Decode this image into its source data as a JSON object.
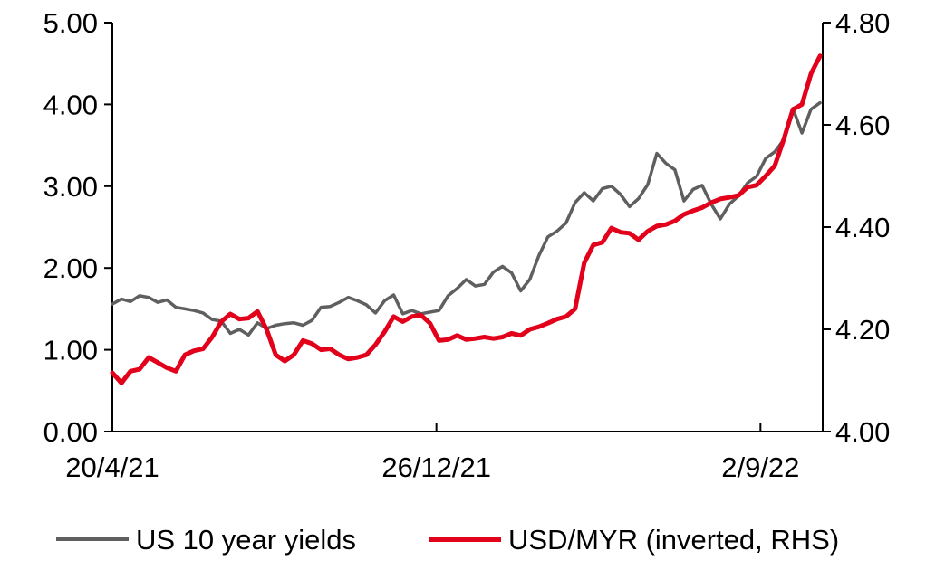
{
  "chart_data": {
    "type": "line",
    "title": "",
    "xlabel": "",
    "ylabel": "",
    "x_ticks": [
      {
        "label": "20/4/21",
        "date": "2021-04-20"
      },
      {
        "label": "26/12/21",
        "date": "2021-12-26"
      },
      {
        "label": "2/9/22",
        "date": "2022-09-02"
      }
    ],
    "x_range": [
      "2021-04-20",
      "2022-10-20"
    ],
    "y_left": {
      "min": 0,
      "max": 5,
      "ticks": [
        "0.00",
        "1.00",
        "2.00",
        "3.00",
        "4.00",
        "5.00"
      ]
    },
    "y_right": {
      "min": 4.0,
      "max": 4.8,
      "inverted": true,
      "ticks": [
        "4.00",
        "4.20",
        "4.40",
        "4.60",
        "4.80"
      ]
    },
    "grid": false,
    "legend_position": "bottom",
    "series": [
      {
        "name": "US 10 year yields",
        "axis": "left",
        "color": "#5f5f5f",
        "points": [
          [
            "2021-04-20",
            1.56
          ],
          [
            "2021-04-27",
            1.62
          ],
          [
            "2021-05-04",
            1.59
          ],
          [
            "2021-05-11",
            1.66
          ],
          [
            "2021-05-18",
            1.64
          ],
          [
            "2021-05-25",
            1.58
          ],
          [
            "2021-06-01",
            1.61
          ],
          [
            "2021-06-08",
            1.52
          ],
          [
            "2021-06-15",
            1.5
          ],
          [
            "2021-06-22",
            1.48
          ],
          [
            "2021-06-29",
            1.45
          ],
          [
            "2021-07-06",
            1.37
          ],
          [
            "2021-07-13",
            1.35
          ],
          [
            "2021-07-20",
            1.2
          ],
          [
            "2021-07-27",
            1.25
          ],
          [
            "2021-08-03",
            1.18
          ],
          [
            "2021-08-10",
            1.33
          ],
          [
            "2021-08-17",
            1.26
          ],
          [
            "2021-08-24",
            1.3
          ],
          [
            "2021-08-31",
            1.32
          ],
          [
            "2021-09-07",
            1.33
          ],
          [
            "2021-09-14",
            1.3
          ],
          [
            "2021-09-21",
            1.36
          ],
          [
            "2021-09-28",
            1.52
          ],
          [
            "2021-10-05",
            1.53
          ],
          [
            "2021-10-12",
            1.58
          ],
          [
            "2021-10-19",
            1.64
          ],
          [
            "2021-10-26",
            1.6
          ],
          [
            "2021-11-02",
            1.55
          ],
          [
            "2021-11-09",
            1.45
          ],
          [
            "2021-11-16",
            1.6
          ],
          [
            "2021-11-23",
            1.67
          ],
          [
            "2021-11-30",
            1.44
          ],
          [
            "2021-12-07",
            1.48
          ],
          [
            "2021-12-14",
            1.44
          ],
          [
            "2021-12-21",
            1.46
          ],
          [
            "2021-12-28",
            1.48
          ],
          [
            "2022-01-04",
            1.66
          ],
          [
            "2022-01-11",
            1.75
          ],
          [
            "2022-01-18",
            1.86
          ],
          [
            "2022-01-25",
            1.78
          ],
          [
            "2022-02-01",
            1.8
          ],
          [
            "2022-02-08",
            1.95
          ],
          [
            "2022-02-15",
            2.02
          ],
          [
            "2022-02-22",
            1.94
          ],
          [
            "2022-03-01",
            1.72
          ],
          [
            "2022-03-08",
            1.86
          ],
          [
            "2022-03-15",
            2.15
          ],
          [
            "2022-03-22",
            2.38
          ],
          [
            "2022-03-29",
            2.45
          ],
          [
            "2022-04-05",
            2.55
          ],
          [
            "2022-04-12",
            2.8
          ],
          [
            "2022-04-19",
            2.92
          ],
          [
            "2022-04-26",
            2.82
          ],
          [
            "2022-05-03",
            2.97
          ],
          [
            "2022-05-10",
            3.0
          ],
          [
            "2022-05-17",
            2.9
          ],
          [
            "2022-05-24",
            2.75
          ],
          [
            "2022-05-31",
            2.85
          ],
          [
            "2022-06-07",
            3.02
          ],
          [
            "2022-06-14",
            3.4
          ],
          [
            "2022-06-21",
            3.28
          ],
          [
            "2022-06-28",
            3.2
          ],
          [
            "2022-07-05",
            2.82
          ],
          [
            "2022-07-12",
            2.96
          ],
          [
            "2022-07-19",
            3.01
          ],
          [
            "2022-07-26",
            2.78
          ],
          [
            "2022-08-02",
            2.6
          ],
          [
            "2022-08-09",
            2.78
          ],
          [
            "2022-08-16",
            2.88
          ],
          [
            "2022-08-23",
            3.04
          ],
          [
            "2022-08-30",
            3.12
          ],
          [
            "2022-09-06",
            3.34
          ],
          [
            "2022-09-13",
            3.42
          ],
          [
            "2022-09-20",
            3.57
          ],
          [
            "2022-09-27",
            3.95
          ],
          [
            "2022-10-04",
            3.65
          ],
          [
            "2022-10-11",
            3.94
          ],
          [
            "2022-10-18",
            4.02
          ]
        ]
      },
      {
        "name": "USD/MYR (inverted, RHS)",
        "axis": "right",
        "color": "#e2001a",
        "points": [
          [
            "2021-04-20",
            4.115
          ],
          [
            "2021-04-27",
            4.095
          ],
          [
            "2021-05-04",
            4.118
          ],
          [
            "2021-05-11",
            4.122
          ],
          [
            "2021-05-18",
            4.145
          ],
          [
            "2021-05-25",
            4.135
          ],
          [
            "2021-06-01",
            4.125
          ],
          [
            "2021-06-08",
            4.118
          ],
          [
            "2021-06-15",
            4.15
          ],
          [
            "2021-06-22",
            4.158
          ],
          [
            "2021-06-29",
            4.162
          ],
          [
            "2021-07-06",
            4.185
          ],
          [
            "2021-07-13",
            4.215
          ],
          [
            "2021-07-20",
            4.23
          ],
          [
            "2021-07-27",
            4.22
          ],
          [
            "2021-08-03",
            4.222
          ],
          [
            "2021-08-10",
            4.235
          ],
          [
            "2021-08-17",
            4.2
          ],
          [
            "2021-08-24",
            4.15
          ],
          [
            "2021-08-31",
            4.138
          ],
          [
            "2021-09-07",
            4.15
          ],
          [
            "2021-09-14",
            4.178
          ],
          [
            "2021-09-21",
            4.172
          ],
          [
            "2021-09-28",
            4.16
          ],
          [
            "2021-10-05",
            4.162
          ],
          [
            "2021-10-12",
            4.15
          ],
          [
            "2021-10-19",
            4.142
          ],
          [
            "2021-10-26",
            4.145
          ],
          [
            "2021-11-02",
            4.15
          ],
          [
            "2021-11-09",
            4.17
          ],
          [
            "2021-11-16",
            4.195
          ],
          [
            "2021-11-23",
            4.225
          ],
          [
            "2021-11-30",
            4.215
          ],
          [
            "2021-12-07",
            4.225
          ],
          [
            "2021-12-14",
            4.228
          ],
          [
            "2021-12-21",
            4.212
          ],
          [
            "2021-12-28",
            4.178
          ],
          [
            "2022-01-04",
            4.18
          ],
          [
            "2022-01-11",
            4.188
          ],
          [
            "2022-01-18",
            4.18
          ],
          [
            "2022-01-25",
            4.182
          ],
          [
            "2022-02-01",
            4.185
          ],
          [
            "2022-02-08",
            4.182
          ],
          [
            "2022-02-15",
            4.185
          ],
          [
            "2022-02-22",
            4.192
          ],
          [
            "2022-03-01",
            4.188
          ],
          [
            "2022-03-08",
            4.2
          ],
          [
            "2022-03-15",
            4.205
          ],
          [
            "2022-03-22",
            4.212
          ],
          [
            "2022-03-29",
            4.22
          ],
          [
            "2022-04-05",
            4.225
          ],
          [
            "2022-04-12",
            4.24
          ],
          [
            "2022-04-19",
            4.33
          ],
          [
            "2022-04-26",
            4.365
          ],
          [
            "2022-05-03",
            4.37
          ],
          [
            "2022-05-10",
            4.398
          ],
          [
            "2022-05-17",
            4.39
          ],
          [
            "2022-05-24",
            4.388
          ],
          [
            "2022-05-31",
            4.375
          ],
          [
            "2022-06-07",
            4.392
          ],
          [
            "2022-06-14",
            4.402
          ],
          [
            "2022-06-21",
            4.405
          ],
          [
            "2022-06-28",
            4.412
          ],
          [
            "2022-07-05",
            4.425
          ],
          [
            "2022-07-12",
            4.432
          ],
          [
            "2022-07-19",
            4.438
          ],
          [
            "2022-07-26",
            4.448
          ],
          [
            "2022-08-02",
            4.455
          ],
          [
            "2022-08-09",
            4.458
          ],
          [
            "2022-08-16",
            4.462
          ],
          [
            "2022-08-23",
            4.478
          ],
          [
            "2022-08-30",
            4.482
          ],
          [
            "2022-09-06",
            4.5
          ],
          [
            "2022-09-13",
            4.52
          ],
          [
            "2022-09-20",
            4.572
          ],
          [
            "2022-09-27",
            4.63
          ],
          [
            "2022-10-04",
            4.64
          ],
          [
            "2022-10-11",
            4.7
          ],
          [
            "2022-10-18",
            4.735
          ]
        ]
      }
    ]
  }
}
